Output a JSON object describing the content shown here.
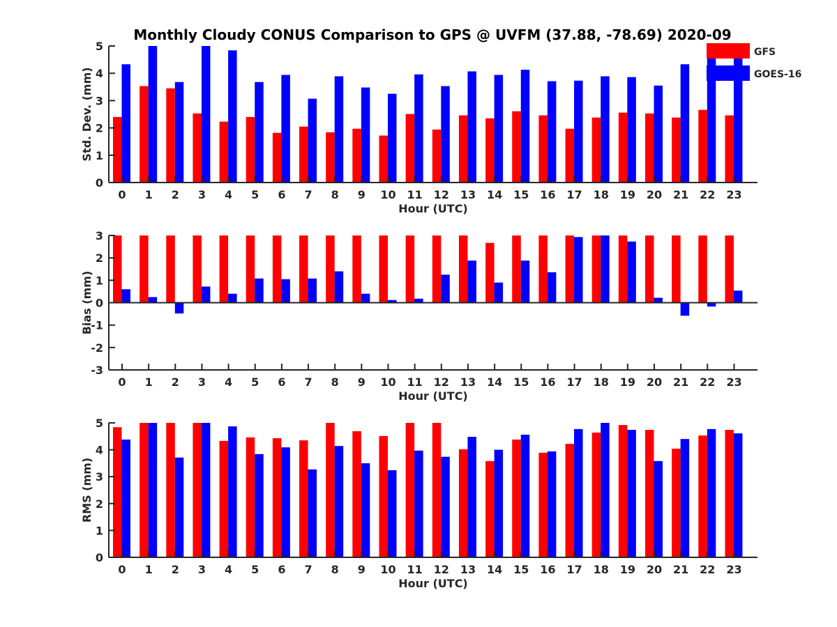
{
  "figure": {
    "title": "Monthly Cloudy CONUS Comparison to GPS @ UVFM (37.88, -78.69) 2020-09",
    "legend": [
      {
        "name": "GFS",
        "color": "#ff0000"
      },
      {
        "name": "GOES-16",
        "color": "#0000ff"
      }
    ]
  },
  "chart_data": [
    {
      "type": "bar",
      "xlabel": "Hour (UTC)",
      "ylabel": "Std. Dev. (mm)",
      "ylim": [
        0,
        5
      ],
      "yticks": [
        0,
        1,
        2,
        3,
        4,
        5
      ],
      "categories": [
        "0",
        "1",
        "2",
        "3",
        "4",
        "5",
        "6",
        "7",
        "8",
        "9",
        "10",
        "11",
        "12",
        "13",
        "14",
        "15",
        "16",
        "17",
        "18",
        "19",
        "20",
        "21",
        "22",
        "23"
      ],
      "legend_position": "top-right",
      "grid": false,
      "series": [
        {
          "name": "GFS",
          "color": "#ff0000",
          "values": [
            2.4,
            3.53,
            3.45,
            2.53,
            2.23,
            2.4,
            1.82,
            2.05,
            1.84,
            1.97,
            1.72,
            2.51,
            1.94,
            2.46,
            2.35,
            2.61,
            2.46,
            1.97,
            2.38,
            2.56,
            2.53,
            2.38,
            2.66,
            2.46
          ]
        },
        {
          "name": "GOES-16",
          "color": "#0000ff",
          "values": [
            4.33,
            5.0,
            3.68,
            5.0,
            4.84,
            3.68,
            3.94,
            3.07,
            3.89,
            3.48,
            3.25,
            3.96,
            3.53,
            4.07,
            3.94,
            4.13,
            3.71,
            3.73,
            3.89,
            3.86,
            3.55,
            4.33,
            4.76,
            4.71
          ]
        }
      ]
    },
    {
      "type": "bar",
      "xlabel": "Hour (UTC)",
      "ylabel": "Bias (mm)",
      "ylim": [
        -3,
        3
      ],
      "yticks": [
        -3,
        -2,
        -1,
        0,
        1,
        2,
        3
      ],
      "categories": [
        "0",
        "1",
        "2",
        "3",
        "4",
        "5",
        "6",
        "7",
        "8",
        "9",
        "10",
        "11",
        "12",
        "13",
        "14",
        "15",
        "16",
        "17",
        "18",
        "19",
        "20",
        "21",
        "22",
        "23"
      ],
      "grid": false,
      "series": [
        {
          "name": "GFS",
          "color": "#ff0000",
          "values": [
            3.0,
            3.0,
            3.0,
            3.0,
            3.0,
            3.0,
            3.0,
            3.0,
            3.0,
            3.0,
            3.0,
            3.0,
            3.0,
            3.0,
            2.67,
            3.0,
            3.0,
            3.0,
            3.0,
            3.0,
            3.0,
            3.0,
            3.0,
            3.0
          ]
        },
        {
          "name": "GOES-16",
          "color": "#0000ff",
          "values": [
            0.6,
            0.25,
            -0.48,
            0.72,
            0.4,
            1.08,
            1.05,
            1.08,
            1.4,
            0.4,
            0.12,
            0.18,
            1.25,
            1.88,
            0.9,
            1.88,
            1.36,
            2.93,
            3.0,
            2.73,
            0.22,
            -0.58,
            -0.17,
            0.54
          ]
        }
      ]
    },
    {
      "type": "bar",
      "xlabel": "Hour (UTC)",
      "ylabel": "RMS (mm)",
      "ylim": [
        0,
        5
      ],
      "yticks": [
        0,
        1,
        2,
        3,
        4,
        5
      ],
      "categories": [
        "0",
        "1",
        "2",
        "3",
        "4",
        "5",
        "6",
        "7",
        "8",
        "9",
        "10",
        "11",
        "12",
        "13",
        "14",
        "15",
        "16",
        "17",
        "18",
        "19",
        "20",
        "21",
        "22",
        "23"
      ],
      "grid": false,
      "series": [
        {
          "name": "GFS",
          "color": "#ff0000",
          "values": [
            4.84,
            5.0,
            5.0,
            5.0,
            4.33,
            4.46,
            4.43,
            4.35,
            5.0,
            4.69,
            4.51,
            5.0,
            5.0,
            4.02,
            3.58,
            4.38,
            3.89,
            4.22,
            4.64,
            4.92,
            4.74,
            4.04,
            4.53,
            4.74
          ]
        },
        {
          "name": "GOES-16",
          "color": "#0000ff",
          "values": [
            4.38,
            5.0,
            3.71,
            5.0,
            4.87,
            3.84,
            4.09,
            3.27,
            4.14,
            3.5,
            3.24,
            3.97,
            3.74,
            4.48,
            4.0,
            4.56,
            3.94,
            4.77,
            5.0,
            4.74,
            3.58,
            4.4,
            4.77,
            4.61
          ]
        }
      ]
    }
  ]
}
